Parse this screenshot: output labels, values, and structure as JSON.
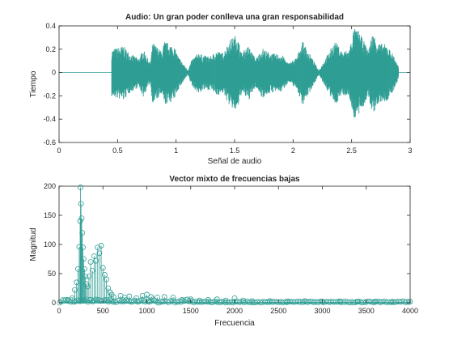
{
  "colors": {
    "signal": "#2f9e94",
    "axis": "#262626",
    "background": "#ffffff"
  },
  "chart_data": [
    {
      "type": "line",
      "title": "Audio: Un gran poder conlleva una gran responsabilidad",
      "xlabel": "Señal de audio",
      "ylabel": "Tiempo",
      "xlim": [
        0,
        3
      ],
      "ylim": [
        -0.6,
        0.4
      ],
      "xticks": [
        "0",
        "0.5",
        "1",
        "1.5",
        "2",
        "2.5",
        "3"
      ],
      "yticks": [
        "-0.6",
        "-0.4",
        "-0.2",
        "0",
        "0.2",
        "0.4"
      ],
      "grid": false,
      "series": [
        {
          "x": [
            0.45,
            0.55,
            0.6,
            0.68,
            0.72,
            0.78,
            0.8,
            0.88,
            0.9,
            0.98,
            1.02,
            1.1,
            1.14,
            1.2,
            1.22,
            1.3,
            1.34,
            1.4,
            1.46,
            1.52,
            1.56,
            1.62,
            1.68,
            1.74,
            1.78,
            1.84,
            1.9,
            1.96,
            2.03,
            2.08,
            2.12,
            2.22,
            2.32,
            2.36,
            2.42,
            2.48,
            2.52,
            2.56,
            2.6,
            2.64,
            2.68,
            2.74,
            2.8,
            2.86,
            2.9
          ],
          "y": [
            0.2,
            0.23,
            0.17,
            0.12,
            0.2,
            0.08,
            0.26,
            0.18,
            0.27,
            0.23,
            0.14,
            0.02,
            0.12,
            0.18,
            0.15,
            0.14,
            0.19,
            0.17,
            0.28,
            0.33,
            0.17,
            0.23,
            0.12,
            0.21,
            0.18,
            0.16,
            0.16,
            0.08,
            0.13,
            0.27,
            0.2,
            0.02,
            0.2,
            0.27,
            0.18,
            0.2,
            0.38,
            0.36,
            0.28,
            0.2,
            0.34,
            0.25,
            0.24,
            0.15,
            0.05
          ]
        }
      ]
    },
    {
      "type": "scatter",
      "title": "Vector mixto de frecuencias bajas",
      "xlabel": "Frecuencia",
      "ylabel": "Magnitud",
      "xlim": [
        0,
        4000
      ],
      "ylim": [
        0,
        200
      ],
      "xticks": [
        "0",
        "500",
        "1000",
        "1500",
        "2000",
        "2500",
        "3000",
        "3500",
        "4000"
      ],
      "yticks": [
        "0",
        "50",
        "100",
        "150",
        "200"
      ],
      "grid": false,
      "markers": "open-circle-stem",
      "series": [
        {
          "x": [
            100,
            150,
            180,
            200,
            215,
            230,
            240,
            245,
            250,
            258,
            265,
            272,
            280,
            290,
            300,
            310,
            325,
            340,
            360,
            380,
            400,
            420,
            440,
            460,
            480,
            500,
            520,
            540,
            560,
            580,
            600,
            620,
            700,
            750,
            800,
            880,
            950,
            1000,
            1050,
            1120,
            1200,
            1300,
            1400,
            1500,
            1600,
            1700,
            1800,
            1900,
            2000,
            2100,
            2200,
            2400,
            2600,
            2800,
            3000,
            3200,
            3400,
            3600,
            3800,
            4000
          ],
          "y": [
            5,
            8,
            22,
            35,
            58,
            96,
            140,
            198,
            170,
            145,
            120,
            95,
            75,
            58,
            45,
            32,
            28,
            45,
            70,
            55,
            80,
            72,
            95,
            85,
            98,
            60,
            48,
            40,
            25,
            18,
            14,
            10,
            12,
            9,
            11,
            8,
            12,
            14,
            10,
            9,
            10,
            9,
            5,
            6,
            4,
            5,
            6,
            4,
            8,
            4,
            3,
            3,
            2,
            3,
            2,
            2,
            2,
            2,
            2,
            2
          ]
        }
      ]
    }
  ]
}
